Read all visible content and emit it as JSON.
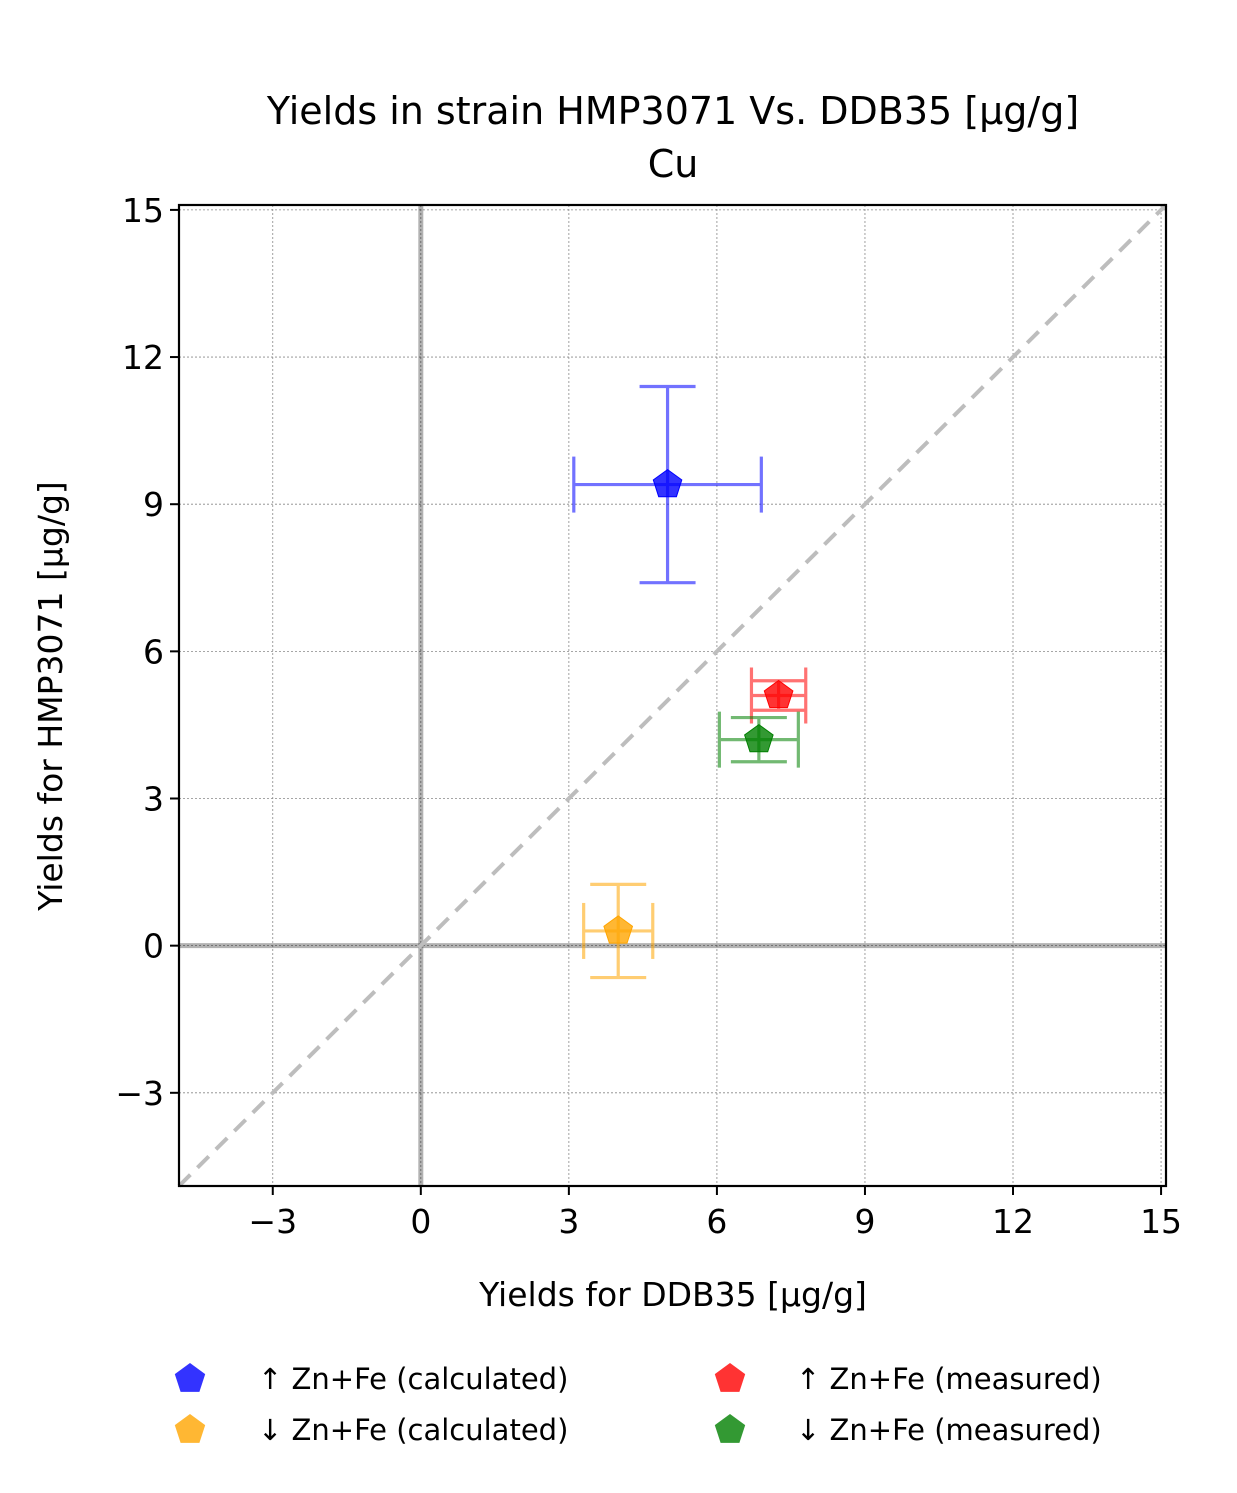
{
  "chart_data": {
    "type": "scatter",
    "title": "Yields in strain HMP3071 Vs. DDB35 [µg/g]",
    "subtitle": "Cu",
    "xlabel": "Yields for DDB35 [µg/g]",
    "ylabel": "Yields for HMP3071 [µg/g]",
    "xlim": [
      -4.9,
      15.1
    ],
    "ylim": [
      -4.9,
      15.1
    ],
    "xticks": [
      -3,
      0,
      3,
      6,
      9,
      12,
      15
    ],
    "yticks": [
      -3,
      0,
      3,
      6,
      9,
      12,
      15
    ],
    "xtick_labels": [
      "−3",
      "0",
      "3",
      "6",
      "9",
      "12",
      "15"
    ],
    "ytick_labels": [
      "−3",
      "0",
      "3",
      "6",
      "9",
      "12",
      "15"
    ],
    "grid": true,
    "reference_lines": {
      "x0": true,
      "y0": true,
      "diagonal": true
    },
    "legend_position": "bottom",
    "series": [
      {
        "name": "↑ Zn+Fe (calculated)",
        "color": "#0000ff",
        "x": 5.0,
        "y": 9.4,
        "xerr": 1.9,
        "yerr": 2.0
      },
      {
        "name": "↑ Zn+Fe (measured)",
        "color": "#ff0000",
        "x": 7.25,
        "y": 5.1,
        "xerr": 0.55,
        "yerr": 0.3
      },
      {
        "name": "↓ Zn+Fe (calculated)",
        "color": "#ffa500",
        "x": 4.0,
        "y": 0.3,
        "xerr": 0.7,
        "yerr": 0.95
      },
      {
        "name": "↓ Zn+Fe (measured)",
        "color": "#008000",
        "x": 6.85,
        "y": 4.2,
        "xerr": 0.8,
        "yerr": 0.45
      }
    ]
  }
}
